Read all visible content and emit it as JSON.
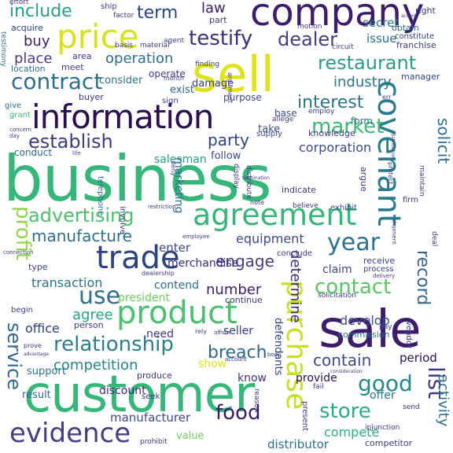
{
  "words": [
    {
      "text": "business",
      "color": "#35b779"
    },
    {
      "text": "customer",
      "color": "#35b779"
    },
    {
      "text": "sale",
      "color": "#3b1c6d"
    },
    {
      "text": "company",
      "color": "#3b1c6d"
    },
    {
      "text": "sell",
      "color": "#dfe318"
    },
    {
      "text": "price",
      "color": "#d8e219"
    },
    {
      "text": "information",
      "color": "#2a0f55"
    },
    {
      "text": "agreement",
      "color": "#35b779"
    },
    {
      "text": "trade",
      "color": "#2c4383"
    },
    {
      "text": "product",
      "color": "#4ac16d"
    },
    {
      "text": "covenant",
      "color": "#287c8e"
    },
    {
      "text": "purchase",
      "color": "#c8e020"
    },
    {
      "text": "evidence",
      "color": "#433e85"
    },
    {
      "text": "relationship",
      "color": "#2d7f8d"
    },
    {
      "text": "contract",
      "color": "#2d708e"
    },
    {
      "text": "market",
      "color": "#3dba72"
    },
    {
      "text": "testify",
      "color": "#3e2e7e"
    },
    {
      "text": "restaurant",
      "color": "#2a9d8a"
    },
    {
      "text": "advertising",
      "color": "#4bc06b"
    },
    {
      "text": "establish",
      "color": "#3c3b84"
    },
    {
      "text": "manufacture",
      "color": "#2d718e"
    },
    {
      "text": "list",
      "color": "#3c3b84"
    },
    {
      "text": "profit",
      "color": "#8fd744"
    },
    {
      "text": "service",
      "color": "#31688e"
    },
    {
      "text": "year",
      "color": "#2c718e"
    },
    {
      "text": "use",
      "color": "#2d718e"
    },
    {
      "text": "contact",
      "color": "#58c763"
    },
    {
      "text": "good",
      "color": "#238a8d"
    },
    {
      "text": "store",
      "color": "#2ab07f"
    },
    {
      "text": "food",
      "color": "#3b1c6d"
    },
    {
      "text": "interest",
      "color": "#2b758e"
    },
    {
      "text": "include",
      "color": "#25a089"
    },
    {
      "text": "dealer",
      "color": "#433e85"
    },
    {
      "text": "term",
      "color": "#2c4383"
    },
    {
      "text": "record",
      "color": "#31688e"
    },
    {
      "text": "solicit",
      "color": "#2d708e"
    },
    {
      "text": "determine",
      "color": "#3c2a7a"
    },
    {
      "text": "competition",
      "color": "#24878e"
    },
    {
      "text": "breach",
      "color": "#31688e"
    },
    {
      "text": "contain",
      "color": "#3e4a89"
    },
    {
      "text": "engage",
      "color": "#433e85"
    },
    {
      "text": "party",
      "color": "#2c4383"
    },
    {
      "text": "equipment",
      "color": "#3e4a89"
    },
    {
      "text": "number",
      "color": "#3b1c6d"
    },
    {
      "text": "agree",
      "color": "#22a785"
    },
    {
      "text": "industry",
      "color": "#2a788e"
    },
    {
      "text": "operation",
      "color": "#2d708e"
    },
    {
      "text": "law",
      "color": "#3b1c6d"
    },
    {
      "text": "buy",
      "color": "#3b1c6d"
    },
    {
      "text": "place",
      "color": "#433e85"
    },
    {
      "text": "corporation",
      "color": "#3e4a89"
    },
    {
      "text": "activity",
      "color": "#2c718e"
    },
    {
      "text": "compete",
      "color": "#2ab07f"
    },
    {
      "text": "period",
      "color": "#2a0f55"
    },
    {
      "text": "manufacturer",
      "color": "#3e4a89"
    },
    {
      "text": "distributor",
      "color": "#2d708e"
    },
    {
      "text": "merchandise",
      "color": "#3c2a7a"
    },
    {
      "text": "office",
      "color": "#2c4383"
    },
    {
      "text": "support",
      "color": "#2d708e"
    },
    {
      "text": "develop",
      "color": "#3e4a89"
    },
    {
      "text": "transaction",
      "color": "#2d718e"
    },
    {
      "text": "conduct",
      "color": "#31688e"
    },
    {
      "text": "salesman",
      "color": "#25a089"
    },
    {
      "text": "enter",
      "color": "#3e4a89"
    },
    {
      "text": "issue",
      "color": "#2c718e"
    },
    {
      "text": "secret",
      "color": "#2c718e"
    },
    {
      "text": "claim",
      "color": "#3e4a89"
    },
    {
      "text": "marketing",
      "color": "#2c718e"
    },
    {
      "text": "contend",
      "color": "#2d708e"
    },
    {
      "text": "president",
      "color": "#6ccd5a"
    },
    {
      "text": "seller",
      "color": "#2c4383"
    },
    {
      "text": "show",
      "color": "#dfe318"
    },
    {
      "text": "know",
      "color": "#3c3b84"
    },
    {
      "text": "defendants",
      "color": "#2c4383"
    },
    {
      "text": "discount",
      "color": "#3c2a7a"
    },
    {
      "text": "provide",
      "color": "#2a0f55"
    },
    {
      "text": "offer",
      "color": "#2a788e"
    },
    {
      "text": "need",
      "color": "#3c3b84"
    },
    {
      "text": "result",
      "color": "#31688e"
    },
    {
      "text": "value",
      "color": "#6ccd5a"
    },
    {
      "text": "consider",
      "color": "#2c718e"
    },
    {
      "text": "form",
      "color": "#2c718e"
    },
    {
      "text": "base",
      "color": "#3e4a89"
    },
    {
      "text": "follow",
      "color": "#3e4a89"
    },
    {
      "text": "take",
      "color": "#3e4a89"
    },
    {
      "text": "damage",
      "color": "#3c3b84"
    },
    {
      "text": "exist",
      "color": "#31688e"
    },
    {
      "text": "operate",
      "color": "#3c3b84"
    },
    {
      "text": "purpose",
      "color": "#3e4a89"
    },
    {
      "text": "part",
      "color": "#3c3b84"
    },
    {
      "text": "right",
      "color": "#3c3b84"
    },
    {
      "text": "obtain",
      "color": "#31688e"
    },
    {
      "text": "franchise",
      "color": "#3c3b84"
    },
    {
      "text": "constitute",
      "color": "#2c4383"
    },
    {
      "text": "manager",
      "color": "#2c4383"
    },
    {
      "text": "acquire",
      "color": "#2c4383"
    },
    {
      "text": "testimony",
      "color": "#2c718e"
    },
    {
      "text": "location",
      "color": "#2c718e"
    },
    {
      "text": "meet",
      "color": "#3c3b84"
    },
    {
      "text": "area",
      "color": "#3c3b84"
    },
    {
      "text": "grant",
      "color": "#35b779"
    },
    {
      "text": "give",
      "color": "#2c718e"
    },
    {
      "text": "buyer",
      "color": "#3c3b84"
    },
    {
      "text": "sign",
      "color": "#3c3b84"
    },
    {
      "text": "receive",
      "color": "#3c3b84"
    },
    {
      "text": "conclude",
      "color": "#3c3b84"
    },
    {
      "text": "process",
      "color": "#3c3b84"
    },
    {
      "text": "commission",
      "color": "#2c718e"
    },
    {
      "text": "solicitation",
      "color": "#3c3b84"
    },
    {
      "text": "continue",
      "color": "#3c3b84"
    },
    {
      "text": "person",
      "color": "#3c3b84"
    },
    {
      "text": "begin",
      "color": "#3c3b84"
    },
    {
      "text": "type",
      "color": "#3c3b84"
    },
    {
      "text": "argue",
      "color": "#3c3b84"
    },
    {
      "text": "indicate",
      "color": "#3c3b84"
    },
    {
      "text": "exhibit",
      "color": "#3c3b84"
    },
    {
      "text": "believe",
      "color": "#3c3b84"
    },
    {
      "text": "knowledge",
      "color": "#3c3b84"
    },
    {
      "text": "telephone",
      "color": "#2c718e"
    },
    {
      "text": "supply",
      "color": "#3e4a89"
    },
    {
      "text": "firm",
      "color": "#3c3b84"
    },
    {
      "text": "vendor",
      "color": "#3c3b84"
    },
    {
      "text": "fail",
      "color": "#3c3b84"
    },
    {
      "text": "seek",
      "color": "#3c3b84"
    },
    {
      "text": "present",
      "color": "#3c3b84"
    },
    {
      "text": "produce",
      "color": "#3c3b84"
    },
    {
      "text": "deal",
      "color": "#3c3b84"
    },
    {
      "text": "pay",
      "color": "#3c3b84"
    },
    {
      "text": "send",
      "color": "#3c3b84"
    },
    {
      "text": "competitor",
      "color": "#3c3b84"
    },
    {
      "text": "injunction",
      "color": "#3c3b84"
    },
    {
      "text": "prohibit",
      "color": "#3c3b84"
    },
    {
      "text": "reason",
      "color": "#3c3b84"
    },
    {
      "text": "employ",
      "color": "#3c3b84"
    },
    {
      "text": "allege",
      "color": "#3c3b84"
    },
    {
      "text": "finding",
      "color": "#3c3b84"
    },
    {
      "text": "circuit",
      "color": "#3c3b84"
    },
    {
      "text": "motion",
      "color": "#3c3b84"
    },
    {
      "text": "basis",
      "color": "#3c3b84"
    },
    {
      "text": "material",
      "color": "#3c3b84"
    },
    {
      "text": "factor",
      "color": "#3c3b84"
    },
    {
      "text": "ship",
      "color": "#3c3b84"
    },
    {
      "text": "effort",
      "color": "#3c3b84"
    },
    {
      "text": "agent",
      "color": "#3c3b84"
    },
    {
      "text": "month",
      "color": "#3c3b84"
    },
    {
      "text": "argument",
      "color": "#3c3b84"
    },
    {
      "text": "deny",
      "color": "#3c3b84"
    },
    {
      "text": "display",
      "color": "#3c3b84"
    },
    {
      "text": "distribute",
      "color": "#3c3b84"
    },
    {
      "text": "maintain",
      "color": "#3c3b84"
    },
    {
      "text": "protect",
      "color": "#3c3b84"
    },
    {
      "text": "involve",
      "color": "#3c3b84"
    },
    {
      "text": "employee",
      "color": "#3c3b84"
    },
    {
      "text": "note",
      "color": "#3c3b84"
    },
    {
      "text": "restriction",
      "color": "#3c3b84"
    },
    {
      "text": "dealership",
      "color": "#3c3b84"
    },
    {
      "text": "connection",
      "color": "#3c3b84"
    },
    {
      "text": "delivery",
      "color": "#3c3b84"
    },
    {
      "text": "rely",
      "color": "#3c3b84"
    },
    {
      "text": "affirm",
      "color": "#3c3b84"
    },
    {
      "text": "account",
      "color": "#3c3b84"
    },
    {
      "text": "book",
      "color": "#3c3b84"
    },
    {
      "text": "consideration",
      "color": "#3c3b84"
    },
    {
      "text": "concern",
      "color": "#3c3b84"
    },
    {
      "text": "day",
      "color": "#3c3b84"
    },
    {
      "text": "life",
      "color": "#3c3b84"
    },
    {
      "text": "termination",
      "color": "#3c3b84"
    },
    {
      "text": "shipment",
      "color": "#3c3b84"
    },
    {
      "text": "prove",
      "color": "#3c3b84"
    },
    {
      "text": "advantage",
      "color": "#3c3b84"
    },
    {
      "text": "err",
      "color": "#3c3b84"
    },
    {
      "text": "accord",
      "color": "#3c3b84"
    },
    {
      "text": "distribution",
      "color": "#3c3b84"
    }
  ]
}
